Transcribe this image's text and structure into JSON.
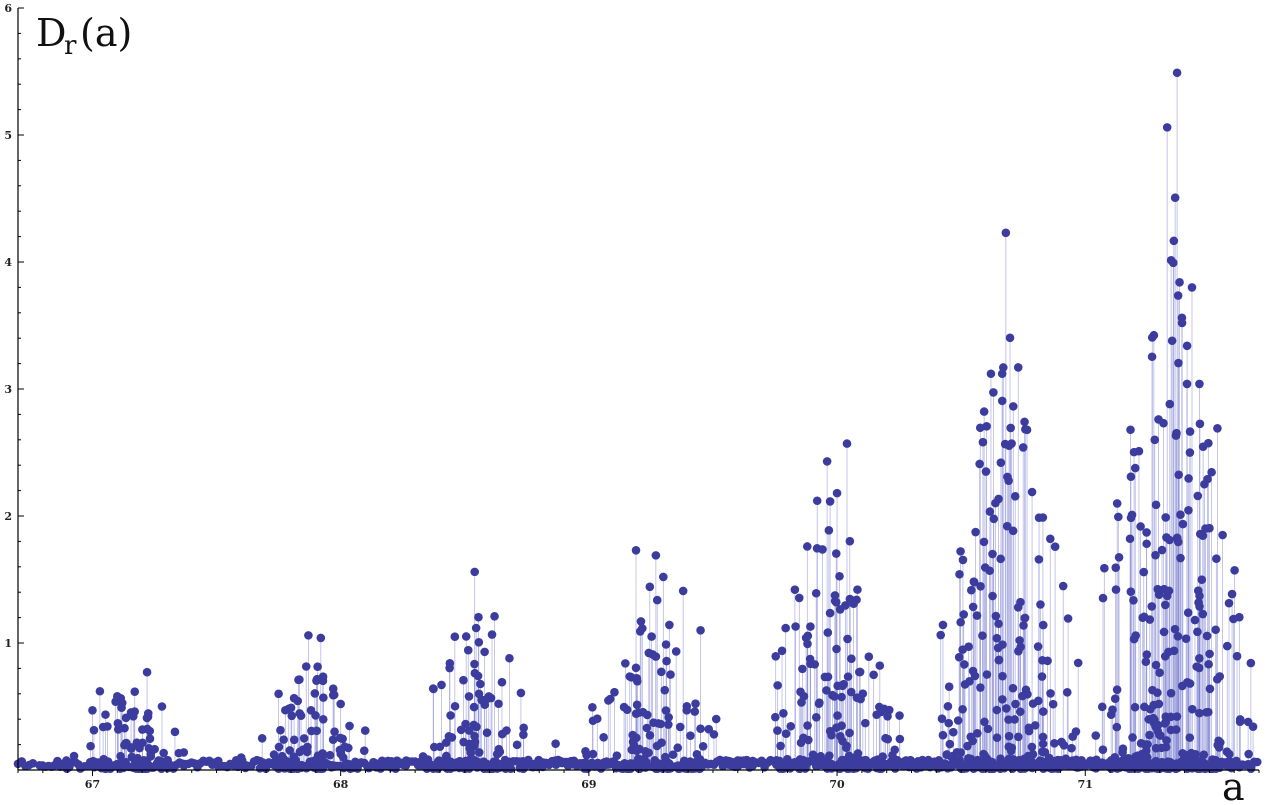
{
  "chart_data": {
    "type": "scatter",
    "style": "stem-points",
    "title": "",
    "ylabel_main": "D",
    "ylabel_sub": "r",
    "ylabel_arg": "(a)",
    "xlabel": "a",
    "xlim": [
      66.7,
      71.7
    ],
    "ylim": [
      0,
      6
    ],
    "x_ticks": [
      67,
      68,
      69,
      70,
      71
    ],
    "y_ticks": [
      1,
      2,
      3,
      4,
      5,
      6
    ],
    "x_minor_step": 0.1,
    "grid": false,
    "colors": {
      "point": "#3b3c9e",
      "stem": "#7b7fd0"
    },
    "clusters": [
      {
        "center": 67.15,
        "halfwidth": 0.33,
        "peaks": [
          [
            67.22,
            0.77
          ],
          [
            67.03,
            0.62
          ],
          [
            67.1,
            0.58
          ],
          [
            67.28,
            0.5
          ],
          [
            67.0,
            0.47
          ],
          [
            67.17,
            0.46
          ]
        ]
      },
      {
        "center": 67.88,
        "halfwidth": 0.35,
        "peaks": [
          [
            67.87,
            1.06
          ],
          [
            67.92,
            1.04
          ],
          [
            67.83,
            0.71
          ],
          [
            67.97,
            0.64
          ],
          [
            67.75,
            0.6
          ],
          [
            68.0,
            0.52
          ]
        ]
      },
      {
        "center": 68.55,
        "halfwidth": 0.38,
        "peaks": [
          [
            68.54,
            1.56
          ],
          [
            68.62,
            1.21
          ],
          [
            68.46,
            1.05
          ],
          [
            68.58,
            0.93
          ],
          [
            68.68,
            0.88
          ],
          [
            68.44,
            0.84
          ]
        ]
      },
      {
        "center": 69.25,
        "halfwidth": 0.38,
        "peaks": [
          [
            69.19,
            1.73
          ],
          [
            69.27,
            1.69
          ],
          [
            69.3,
            1.52
          ],
          [
            69.38,
            1.41
          ],
          [
            69.21,
            1.17
          ],
          [
            69.45,
            1.1
          ]
        ]
      },
      {
        "center": 69.98,
        "halfwidth": 0.4,
        "peaks": [
          [
            70.04,
            2.57
          ],
          [
            69.96,
            2.43
          ],
          [
            69.92,
            2.12
          ],
          [
            70.0,
            2.18
          ],
          [
            69.88,
            1.76
          ],
          [
            69.83,
            1.42
          ]
        ]
      },
      {
        "center": 70.68,
        "halfwidth": 0.42,
        "peaks": [
          [
            70.68,
            4.23
          ],
          [
            70.62,
            3.12
          ],
          [
            70.73,
            3.17
          ],
          [
            70.75,
            2.54
          ],
          [
            70.66,
            2.42
          ],
          [
            70.6,
            2.35
          ]
        ]
      },
      {
        "center": 71.35,
        "halfwidth": 0.43,
        "peaks": [
          [
            71.37,
            5.49
          ],
          [
            71.33,
            5.06
          ],
          [
            71.38,
            3.84
          ],
          [
            71.43,
            3.8
          ],
          [
            71.39,
            3.52
          ],
          [
            71.35,
            3.38
          ],
          [
            71.41,
            3.04
          ],
          [
            71.28,
            2.6
          ],
          [
            71.48,
            2.25
          ],
          [
            71.46,
            3.04
          ]
        ]
      }
    ]
  }
}
